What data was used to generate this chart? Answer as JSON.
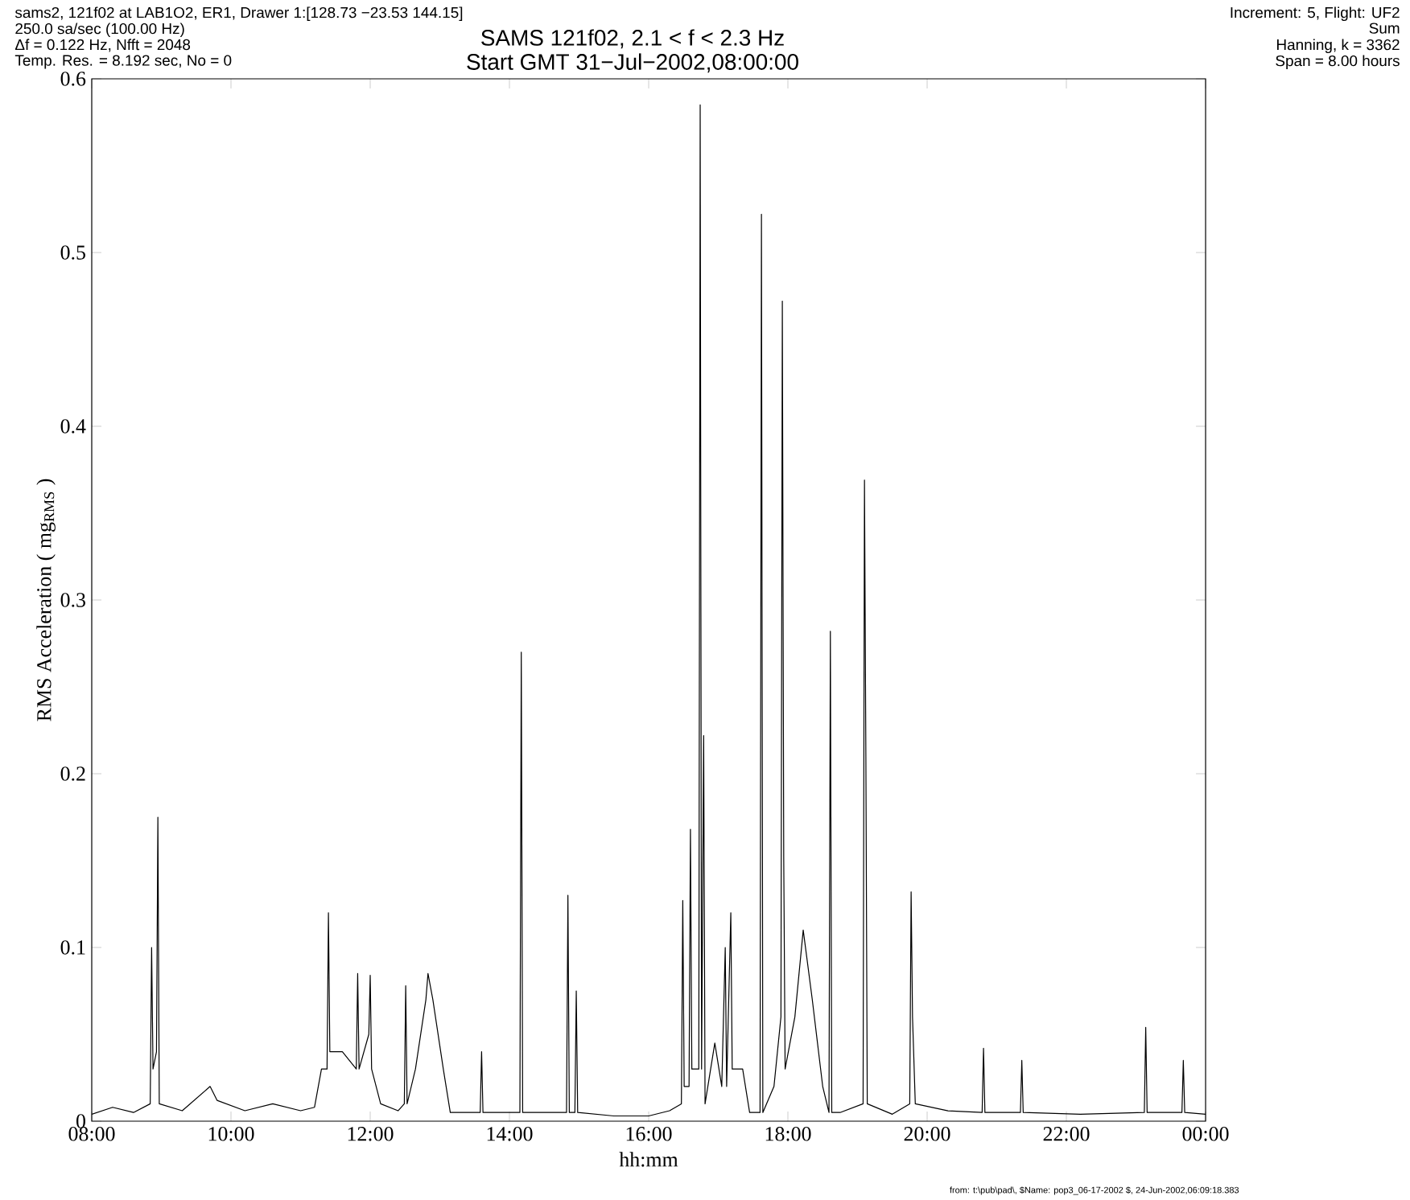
{
  "chart_data": {
    "type": "line",
    "title": "SAMS 121f02, 2.1 < f < 2.3 Hz",
    "subtitle": "Start GMT 31−Jul−2002,08:00:00",
    "xlabel": "hh:mm",
    "ylabel": "RMS Acceleration ( mg$_{RMS}$ )",
    "annotations": [
      "sams2, 121f02 at LAB1O2, ER1, Drawer 1:[128.73 −23.53 144.15]",
      "250.0 sa/sec (100.00 Hz)",
      "Δf = 0.122 Hz,  Nfft = 2048",
      "Temp. Res. = 8.192 sec, No = 0",
      "Increment: 5, Flight: UF2",
      "Sum",
      "Hanning, k = 3362",
      "Span = 8.00 hours",
      "from: t:\\pub\\pad\\, $Name: pop3_06-17-2002 $, 24-Jun-2002,06:09:18.383"
    ],
    "xlim": [
      8,
      24
    ],
    "ylim": [
      0,
      0.6
    ],
    "xticks": [
      {
        "value": 8,
        "label": "08:00"
      },
      {
        "value": 10,
        "label": "10:00"
      },
      {
        "value": 12,
        "label": "12:00"
      },
      {
        "value": 14,
        "label": "14:00"
      },
      {
        "value": 16,
        "label": "16:00"
      },
      {
        "value": 18,
        "label": "18:00"
      },
      {
        "value": 20,
        "label": "20:00"
      },
      {
        "value": 22,
        "label": "22:00"
      },
      {
        "value": 24,
        "label": "00:00"
      }
    ],
    "yticks": [
      0,
      0.1,
      0.2,
      0.3,
      0.4,
      0.5,
      0.6
    ],
    "line_style": "solid",
    "marker": "none",
    "series": [
      {
        "color": "#000000",
        "x": [
          8.0,
          8.3,
          8.6,
          8.84,
          8.86,
          8.88,
          8.93,
          8.95,
          8.97,
          9.3,
          9.7,
          9.8,
          10.2,
          10.6,
          11.0,
          11.2,
          11.3,
          11.38,
          11.4,
          11.42,
          11.6,
          11.8,
          11.82,
          11.84,
          11.98,
          12.0,
          12.02,
          12.15,
          12.4,
          12.49,
          12.51,
          12.53,
          12.65,
          12.8,
          12.83,
          12.9,
          13.05,
          13.15,
          13.58,
          13.6,
          13.62,
          14.15,
          14.17,
          14.19,
          14.82,
          14.84,
          14.86,
          14.94,
          14.96,
          14.98,
          15.5,
          16.0,
          16.3,
          16.47,
          16.49,
          16.51,
          16.58,
          16.6,
          16.62,
          16.72,
          16.74,
          16.76,
          16.79,
          16.81,
          16.95,
          17.05,
          17.1,
          17.12,
          17.18,
          17.2,
          17.35,
          17.45,
          17.6,
          17.62,
          17.64,
          17.8,
          17.9,
          17.92,
          17.94,
          17.96,
          18.1,
          18.22,
          18.35,
          18.5,
          18.59,
          18.61,
          18.63,
          18.75,
          19.08,
          19.1,
          19.12,
          19.14,
          19.5,
          19.75,
          19.77,
          19.79,
          19.83,
          20.3,
          20.79,
          20.81,
          20.83,
          21.34,
          21.36,
          21.38,
          22.2,
          23.12,
          23.14,
          23.16,
          23.66,
          23.68,
          23.7,
          24.0
        ],
        "values": [
          0.004,
          0.008,
          0.005,
          0.01,
          0.1,
          0.03,
          0.04,
          0.175,
          0.01,
          0.006,
          0.02,
          0.012,
          0.006,
          0.01,
          0.006,
          0.008,
          0.03,
          0.03,
          0.12,
          0.04,
          0.04,
          0.03,
          0.085,
          0.03,
          0.05,
          0.084,
          0.03,
          0.01,
          0.006,
          0.01,
          0.078,
          0.01,
          0.03,
          0.07,
          0.085,
          0.07,
          0.03,
          0.005,
          0.005,
          0.04,
          0.005,
          0.005,
          0.27,
          0.005,
          0.005,
          0.13,
          0.005,
          0.005,
          0.075,
          0.005,
          0.003,
          0.003,
          0.006,
          0.01,
          0.127,
          0.02,
          0.02,
          0.168,
          0.03,
          0.03,
          0.585,
          0.03,
          0.222,
          0.01,
          0.045,
          0.02,
          0.1,
          0.02,
          0.12,
          0.03,
          0.03,
          0.005,
          0.005,
          0.522,
          0.005,
          0.02,
          0.06,
          0.472,
          0.152,
          0.03,
          0.06,
          0.11,
          0.07,
          0.02,
          0.005,
          0.282,
          0.005,
          0.005,
          0.01,
          0.369,
          0.21,
          0.01,
          0.004,
          0.01,
          0.132,
          0.06,
          0.01,
          0.006,
          0.005,
          0.042,
          0.005,
          0.005,
          0.035,
          0.005,
          0.004,
          0.005,
          0.054,
          0.005,
          0.005,
          0.035,
          0.005,
          0.004
        ]
      }
    ]
  }
}
